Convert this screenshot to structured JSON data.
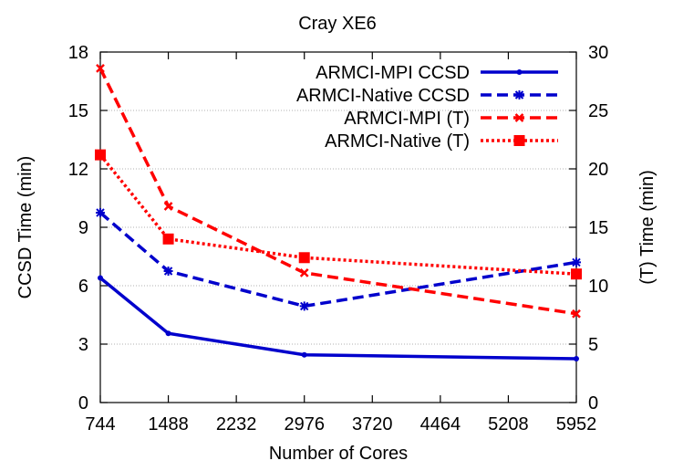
{
  "chart_data": {
    "type": "line",
    "title": "Cray XE6",
    "xlabel": "Number of Cores",
    "ylabel": "CCSD Time (min)",
    "y2label": "(T) Time (min)",
    "xlim": [
      744,
      5952
    ],
    "ylim": [
      0,
      18
    ],
    "y2lim": [
      0,
      30
    ],
    "xticks": [
      744,
      1488,
      2232,
      2976,
      3720,
      4464,
      5208,
      5952
    ],
    "yticks": [
      0,
      3,
      6,
      9,
      12,
      15,
      18
    ],
    "y2ticks": [
      0,
      5,
      10,
      15,
      20,
      25,
      30
    ],
    "grid": true,
    "legend_position": "top-right",
    "series": [
      {
        "name": "ARMCI-MPI CCSD",
        "axis": "left",
        "color": "#0000cc",
        "dash": "solid",
        "marker": "dot",
        "x": [
          744,
          1488,
          2976,
          5952
        ],
        "y": [
          6.4,
          3.55,
          2.45,
          2.25
        ]
      },
      {
        "name": "ARMCI-Native CCSD",
        "axis": "left",
        "color": "#0000cc",
        "dash": "dashed",
        "marker": "star",
        "x": [
          744,
          1488,
          2976,
          5952
        ],
        "y": [
          9.75,
          6.75,
          4.95,
          7.2
        ]
      },
      {
        "name": "ARMCI-MPI (T)",
        "axis": "right",
        "color": "#ff0000",
        "dash": "dashed",
        "marker": "x",
        "x": [
          744,
          1488,
          2976,
          5952
        ],
        "y": [
          28.6,
          16.8,
          11.1,
          7.6
        ]
      },
      {
        "name": "ARMCI-Native (T)",
        "axis": "right",
        "color": "#ff0000",
        "dash": "dotted",
        "marker": "square",
        "x": [
          744,
          1488,
          2976,
          5952
        ],
        "y": [
          21.2,
          14.0,
          12.4,
          11.0
        ]
      }
    ]
  }
}
